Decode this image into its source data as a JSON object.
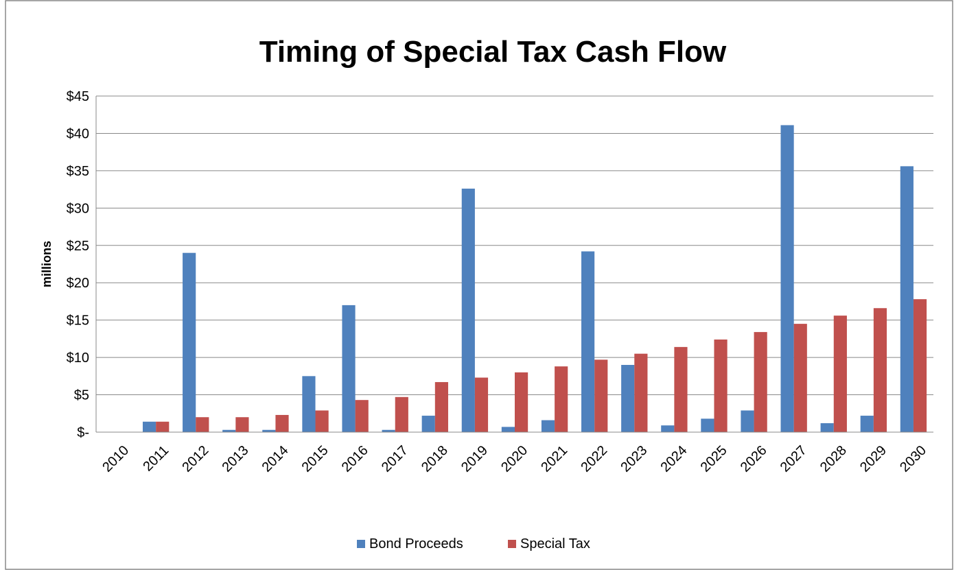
{
  "chart_data": {
    "type": "bar",
    "title": "Timing of Special Tax Cash Flow",
    "y_label": "millions",
    "categories": [
      "2010",
      "2011",
      "2012",
      "2013",
      "2014",
      "2015",
      "2016",
      "2017",
      "2018",
      "2019",
      "2020",
      "2021",
      "2022",
      "2023",
      "2024",
      "2025",
      "2026",
      "2027",
      "2028",
      "2029",
      "2030"
    ],
    "series": [
      {
        "name": "Bond Proceeds",
        "color": "#4f81bd",
        "values": [
          0,
          1.4,
          24,
          0.3,
          0.3,
          7.5,
          17,
          0.3,
          2.2,
          32.6,
          0.7,
          1.6,
          24.2,
          9.0,
          0.9,
          1.8,
          2.9,
          41.1,
          1.2,
          2.2,
          35.6
        ]
      },
      {
        "name": "Special Tax",
        "color": "#c0504d",
        "values": [
          0,
          1.4,
          2.0,
          2.0,
          2.3,
          2.9,
          4.3,
          4.7,
          6.7,
          7.3,
          8.0,
          8.8,
          9.7,
          10.5,
          11.4,
          12.4,
          13.4,
          14.5,
          15.6,
          16.6,
          17.8
        ]
      }
    ],
    "ylim": [
      0,
      45
    ],
    "yticks": [
      {
        "value": 0,
        "label": "$-"
      },
      {
        "value": 5,
        "label": "$5"
      },
      {
        "value": 10,
        "label": "$10"
      },
      {
        "value": 15,
        "label": "$15"
      },
      {
        "value": 20,
        "label": "$20"
      },
      {
        "value": 25,
        "label": "$25"
      },
      {
        "value": 30,
        "label": "$30"
      },
      {
        "value": 35,
        "label": "$35"
      },
      {
        "value": 40,
        "label": "$40"
      },
      {
        "value": 45,
        "label": "$45"
      }
    ],
    "grid": true,
    "legend": "bottom"
  }
}
